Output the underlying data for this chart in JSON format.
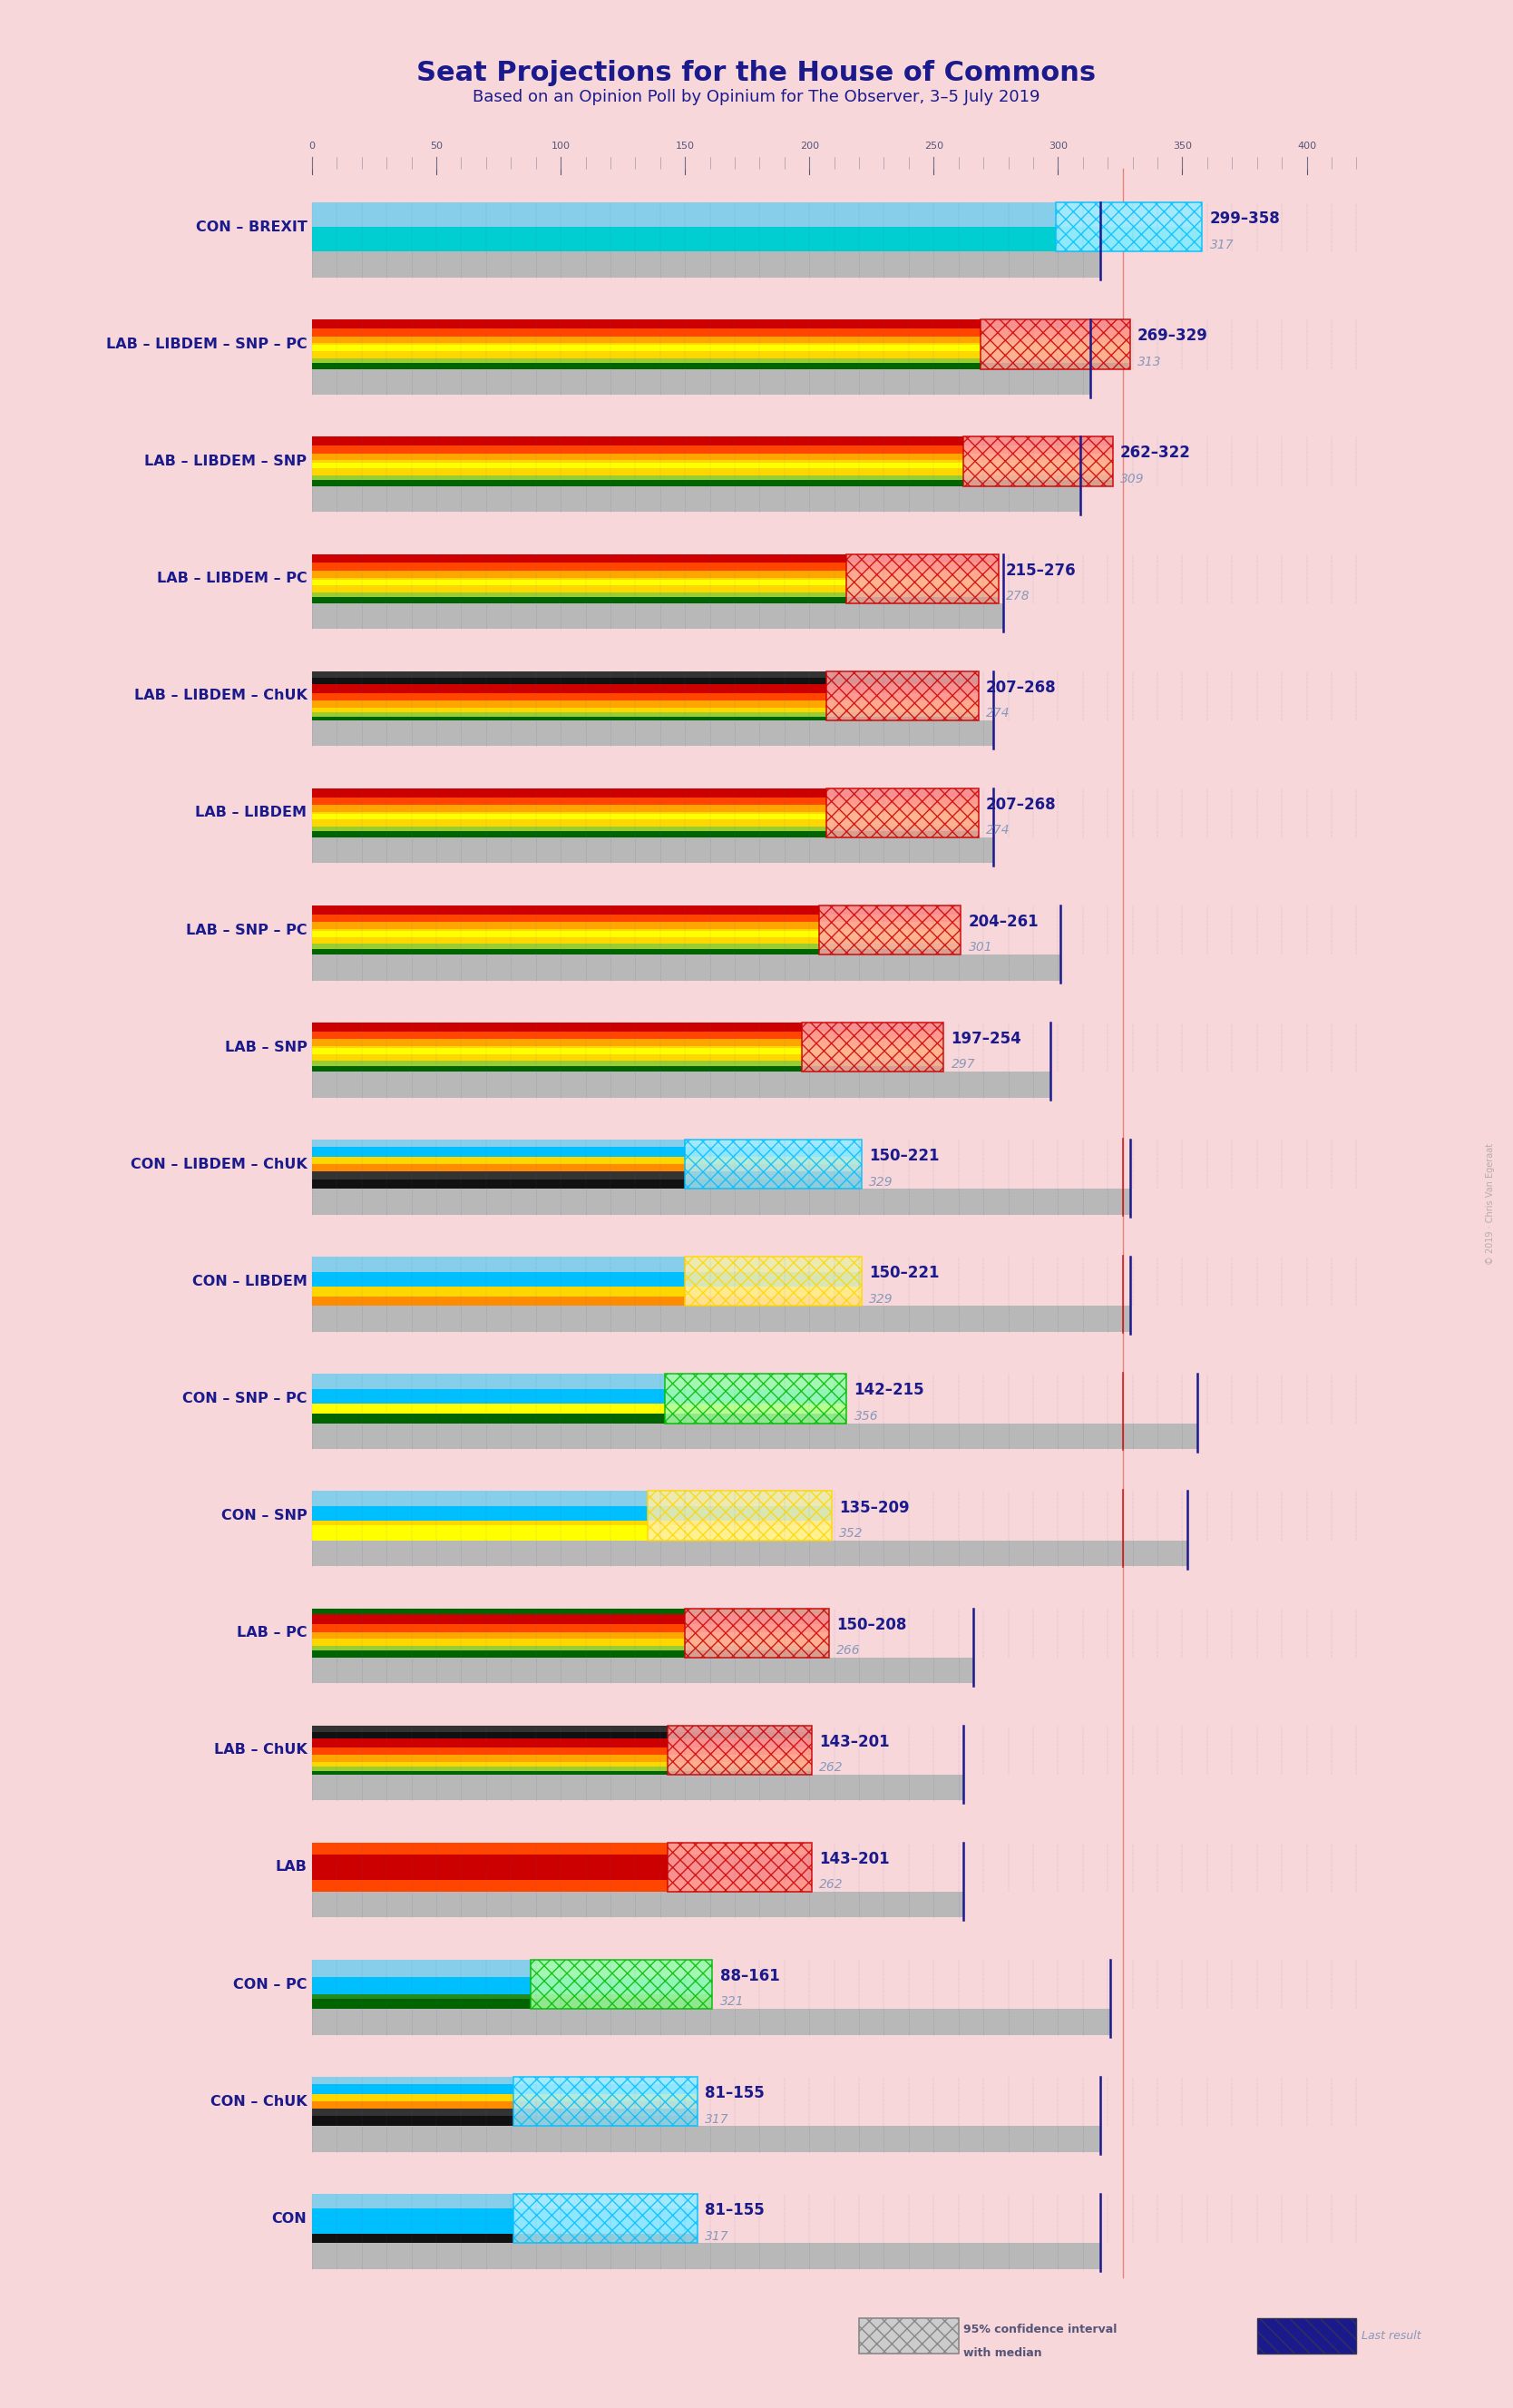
{
  "title": "Seat Projections for the House of Commons",
  "subtitle": "Based on an Opinion Poll by Opinium for The Observer, 3–5 July 2019",
  "background_color": "#f8d7da",
  "title_color": "#1a1a8c",
  "subtitle_color": "#1a1a8c",
  "majority_line": 326,
  "x_max": 420,
  "watermark": "© 2019 · Chris Van Egeraat",
  "coalitions": [
    {
      "name": "CON – BREXIT",
      "ci_low": 299,
      "ci_high": 358,
      "median": 317,
      "last": 317,
      "type": "con_brexit"
    },
    {
      "name": "LAB – LIBDEM – SNP – PC",
      "ci_low": 269,
      "ci_high": 329,
      "median": 313,
      "last": 313,
      "type": "lab_full"
    },
    {
      "name": "LAB – LIBDEM – SNP",
      "ci_low": 262,
      "ci_high": 322,
      "median": 309,
      "last": 309,
      "type": "lab_full"
    },
    {
      "name": "LAB – LIBDEM – PC",
      "ci_low": 215,
      "ci_high": 276,
      "median": 278,
      "last": 278,
      "type": "lab_full"
    },
    {
      "name": "LAB – LIBDEM – ChUK",
      "ci_low": 207,
      "ci_high": 268,
      "median": 274,
      "last": 274,
      "type": "lab_chuk"
    },
    {
      "name": "LAB – LIBDEM",
      "ci_low": 207,
      "ci_high": 268,
      "median": 274,
      "last": 274,
      "type": "lab_full"
    },
    {
      "name": "LAB – SNP – PC",
      "ci_low": 204,
      "ci_high": 261,
      "median": 301,
      "last": 301,
      "type": "lab_full"
    },
    {
      "name": "LAB – SNP",
      "ci_low": 197,
      "ci_high": 254,
      "median": 297,
      "last": 297,
      "type": "lab_full"
    },
    {
      "name": "CON – LIBDEM – ChUK",
      "ci_low": 150,
      "ci_high": 221,
      "median": 329,
      "last": 329,
      "type": "con_chuk"
    },
    {
      "name": "CON – LIBDEM",
      "ci_low": 150,
      "ci_high": 221,
      "median": 329,
      "last": 329,
      "type": "con_libdem"
    },
    {
      "name": "CON – SNP – PC",
      "ci_low": 142,
      "ci_high": 215,
      "median": 356,
      "last": 356,
      "type": "con_snp_pc"
    },
    {
      "name": "CON – SNP",
      "ci_low": 135,
      "ci_high": 209,
      "median": 352,
      "last": 352,
      "type": "con_snp"
    },
    {
      "name": "LAB – PC",
      "ci_low": 150,
      "ci_high": 208,
      "median": 266,
      "last": 266,
      "type": "lab_pc"
    },
    {
      "name": "LAB – ChUK",
      "ci_low": 143,
      "ci_high": 201,
      "median": 262,
      "last": 262,
      "type": "lab_chuk"
    },
    {
      "name": "LAB",
      "ci_low": 143,
      "ci_high": 201,
      "median": 262,
      "last": 262,
      "type": "lab_only"
    },
    {
      "name": "CON – PC",
      "ci_low": 88,
      "ci_high": 161,
      "median": 321,
      "last": 321,
      "type": "con_pc"
    },
    {
      "name": "CON – ChUK",
      "ci_low": 81,
      "ci_high": 155,
      "median": 317,
      "last": 317,
      "type": "con_chuk"
    },
    {
      "name": "CON",
      "ci_low": 81,
      "ci_high": 155,
      "median": 317,
      "last": 317,
      "type": "con_only"
    }
  ]
}
